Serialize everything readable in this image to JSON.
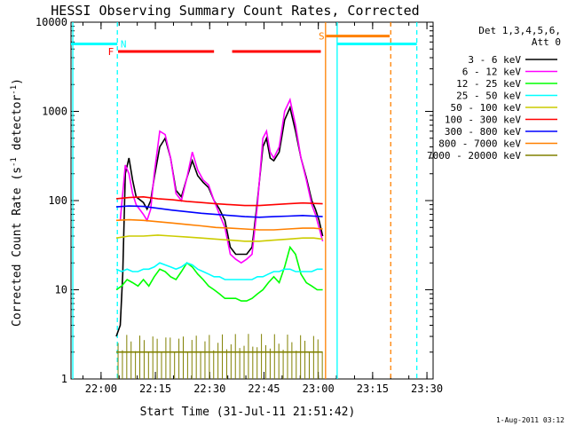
{
  "chart_data": {
    "type": "line",
    "title": "HESSI Observing Summary Count Rates, Corrected",
    "xlabel": "Start Time (31-Jul-11 21:51:42)",
    "ylabel_main": "Corrected Count Rate (s",
    "ylabel_sup1": "-1",
    "ylabel_mid": " detector",
    "ylabel_sup2": "-1",
    "ylabel_end": ")",
    "footer_date": "1-Aug-2011 03:12",
    "x_scale": "linear (minutes after 21:51:42 start)",
    "y_scale": "log",
    "xlim_minutes": [
      0,
      100
    ],
    "ylim": [
      1,
      10000
    ],
    "xtick_labels": [
      "22:00",
      "22:15",
      "22:30",
      "22:45",
      "23:00",
      "23:15",
      "23:30"
    ],
    "xtick_minutes": [
      8.3,
      23.3,
      38.3,
      53.3,
      68.3,
      83.3,
      98.3
    ],
    "ytick_labels": [
      "1",
      "10",
      "100",
      "1000",
      "10000"
    ],
    "ytick_values": [
      1,
      10,
      100,
      1000,
      10000
    ],
    "legend_header_1": "Det 1,3,4,5,6,",
    "legend_header_2": "Att 0",
    "legend_position": "right, outside plot",
    "series": [
      {
        "name": "3 - 6 keV",
        "color": "#000000",
        "x": [
          12.5,
          13.6,
          14.3,
          15.0,
          16.0,
          17.0,
          18.0,
          20.0,
          21.0,
          22.0,
          23.0,
          24.5,
          26.0,
          27.5,
          29.0,
          30.5,
          32.0,
          33.5,
          35.0,
          36.5,
          38.0,
          39.5,
          41.0,
          42.5,
          44.0,
          45.5,
          47.0,
          48.5,
          50.0,
          51.5,
          53.0,
          54.0,
          55.0,
          56.0,
          57.5,
          59.0,
          60.5,
          62.0,
          63.5,
          65.0,
          66.5,
          67.5,
          68.5,
          69.5
        ],
        "y": [
          3,
          4,
          15,
          200,
          300,
          170,
          110,
          95,
          80,
          100,
          180,
          400,
          500,
          300,
          130,
          110,
          180,
          280,
          190,
          160,
          140,
          100,
          80,
          60,
          30,
          25,
          25,
          25,
          30,
          100,
          400,
          500,
          300,
          280,
          350,
          800,
          1100,
          600,
          300,
          180,
          100,
          80,
          60,
          40
        ]
      },
      {
        "name": "6 - 12 keV",
        "color": "#ff00ff",
        "x": [
          13.6,
          15.0,
          16.0,
          17.0,
          18.0,
          20.0,
          21.0,
          22.0,
          23.0,
          24.5,
          26.0,
          27.5,
          29.0,
          30.5,
          32.0,
          33.5,
          35.0,
          36.5,
          38.0,
          39.5,
          41.0,
          42.5,
          44.0,
          45.5,
          47.0,
          48.5,
          50.0,
          51.5,
          53.0,
          54.0,
          55.0,
          56.0,
          57.5,
          59.0,
          60.5,
          62.0,
          63.5,
          65.0,
          66.5,
          67.5,
          68.5,
          69.5
        ],
        "y": [
          60,
          250,
          200,
          120,
          90,
          70,
          60,
          80,
          200,
          600,
          550,
          300,
          120,
          100,
          180,
          350,
          220,
          170,
          150,
          100,
          70,
          50,
          25,
          22,
          20,
          22,
          25,
          90,
          500,
          600,
          350,
          300,
          400,
          1000,
          1350,
          700,
          300,
          170,
          90,
          70,
          50,
          35
        ]
      },
      {
        "name": "12 - 25 keV",
        "color": "#00ff00",
        "x": [
          12.5,
          14.0,
          15.5,
          17.0,
          18.5,
          20.0,
          21.5,
          23.0,
          24.5,
          26.0,
          27.5,
          29.0,
          30.5,
          32.0,
          33.5,
          35.0,
          36.5,
          38.0,
          39.5,
          41.0,
          42.5,
          44.0,
          45.5,
          47.0,
          48.5,
          50.0,
          51.5,
          53.0,
          54.5,
          56.0,
          57.5,
          59.0,
          60.5,
          62.0,
          63.5,
          65.0,
          66.5,
          68.0,
          69.5
        ],
        "y": [
          10,
          11,
          13,
          12,
          11,
          13,
          11,
          14,
          17,
          16,
          14,
          13,
          16,
          20,
          18,
          15,
          13,
          11,
          10,
          9,
          8,
          8,
          8,
          7.5,
          7.5,
          8,
          9,
          10,
          12,
          14,
          12,
          18,
          30,
          25,
          15,
          12,
          11,
          10,
          10
        ]
      },
      {
        "name": "25 - 50 keV",
        "color": "#00ffff",
        "x": [
          12.5,
          14.0,
          15.5,
          17.0,
          18.5,
          20.0,
          21.5,
          23.0,
          24.5,
          26.0,
          27.5,
          29.0,
          30.5,
          32.0,
          33.5,
          35.0,
          36.5,
          38.0,
          39.5,
          41.0,
          42.5,
          44.0,
          45.5,
          47.0,
          48.5,
          50.0,
          51.5,
          53.0,
          54.5,
          56.0,
          57.5,
          59.0,
          60.5,
          62.0,
          63.5,
          65.0,
          66.5,
          68.0,
          69.5
        ],
        "y": [
          17,
          16,
          17,
          16,
          16,
          17,
          17,
          18,
          20,
          19,
          18,
          17,
          18,
          20,
          19,
          17,
          16,
          15,
          14,
          14,
          13,
          13,
          13,
          13,
          13,
          13,
          14,
          14,
          15,
          16,
          16,
          17,
          17,
          16,
          16,
          16,
          16,
          17,
          17
        ]
      },
      {
        "name": "50 - 100 keV",
        "color": "#cccc00",
        "x": [
          12.5,
          16.0,
          20.0,
          24.0,
          28.0,
          32.0,
          36.0,
          40.0,
          44.0,
          48.0,
          52.0,
          56.0,
          60.0,
          64.0,
          67.0,
          69.5
        ],
        "y": [
          38,
          40,
          40,
          41,
          40,
          39,
          38,
          37,
          36,
          35,
          35,
          36,
          37,
          38,
          38,
          37
        ]
      },
      {
        "name": "100 - 300 keV",
        "color": "#ff0000",
        "x": [
          12.5,
          16.0,
          20.0,
          24.0,
          28.0,
          32.0,
          36.0,
          40.0,
          44.0,
          48.0,
          52.0,
          56.0,
          60.0,
          64.0,
          67.0,
          69.5
        ],
        "y": [
          105,
          108,
          110,
          105,
          102,
          98,
          95,
          92,
          90,
          88,
          88,
          90,
          92,
          94,
          93,
          92
        ]
      },
      {
        "name": "300 - 800 keV",
        "color": "#0000ff",
        "x": [
          12.5,
          16.0,
          20.0,
          24.0,
          28.0,
          32.0,
          36.0,
          40.0,
          44.0,
          48.0,
          52.0,
          56.0,
          60.0,
          64.0,
          67.0,
          69.5
        ],
        "y": [
          85,
          87,
          86,
          82,
          78,
          75,
          72,
          70,
          68,
          66,
          65,
          66,
          67,
          68,
          67,
          66
        ]
      },
      {
        "name": "800 - 7000 keV",
        "color": "#ff8000",
        "x": [
          12.5,
          16.0,
          20.0,
          24.0,
          28.0,
          32.0,
          36.0,
          40.0,
          44.0,
          48.0,
          52.0,
          56.0,
          60.0,
          64.0,
          67.0,
          69.5
        ],
        "y": [
          60,
          61,
          60,
          58,
          56,
          54,
          52,
          50,
          49,
          48,
          47,
          47,
          48,
          49,
          49,
          48
        ]
      },
      {
        "name": "7000 - 20000 keV",
        "color": "#808000",
        "x": [
          12.5,
          20.0,
          28.0,
          36.0,
          44.0,
          52.0,
          60.0,
          69.5
        ],
        "y": [
          2,
          2,
          2,
          2,
          2,
          2,
          2,
          2
        ]
      }
    ],
    "flag_bars": [
      {
        "label": "",
        "color": "#00ffff",
        "y": 5700,
        "x_start": 0,
        "x_end": 12.8
      },
      {
        "label": "F",
        "color": "#ff0000",
        "y": 4700,
        "x_start": 13.0,
        "x_end": 39.5
      },
      {
        "label": "",
        "color": "#ff0000",
        "y": 4700,
        "x_start": 44.5,
        "x_end": 69.0
      },
      {
        "label": "S",
        "color": "#ff8000",
        "y": 7000,
        "x_start": 70.5,
        "x_end": 88.0
      },
      {
        "label": "",
        "color": "#00ffff",
        "y": 5700,
        "x_start": 73.5,
        "x_end": 95.5
      }
    ],
    "flag_labels": [
      {
        "text": "F",
        "color": "#ff0000",
        "x_minutes": 11.0,
        "y": 4700
      },
      {
        "text": "N",
        "color": "#00ffff",
        "x_minutes": 14.5,
        "y": 5700
      },
      {
        "text": "S",
        "color": "#ff8000",
        "x_minutes": 69.2,
        "y": 7000
      }
    ],
    "vertical_markers": [
      {
        "color": "#00ffff",
        "style": "solid",
        "x_minutes": 0.5
      },
      {
        "color": "#00ffff",
        "style": "dashed",
        "x_minutes": 12.8
      },
      {
        "color": "#ff8000",
        "style": "solid",
        "x_minutes": 70.3
      },
      {
        "color": "#00ffff",
        "style": "solid",
        "x_minutes": 73.5
      },
      {
        "color": "#ff8000",
        "style": "dashed",
        "x_minutes": 88.3
      },
      {
        "color": "#00ffff",
        "style": "dashed",
        "x_minutes": 95.5
      }
    ]
  }
}
